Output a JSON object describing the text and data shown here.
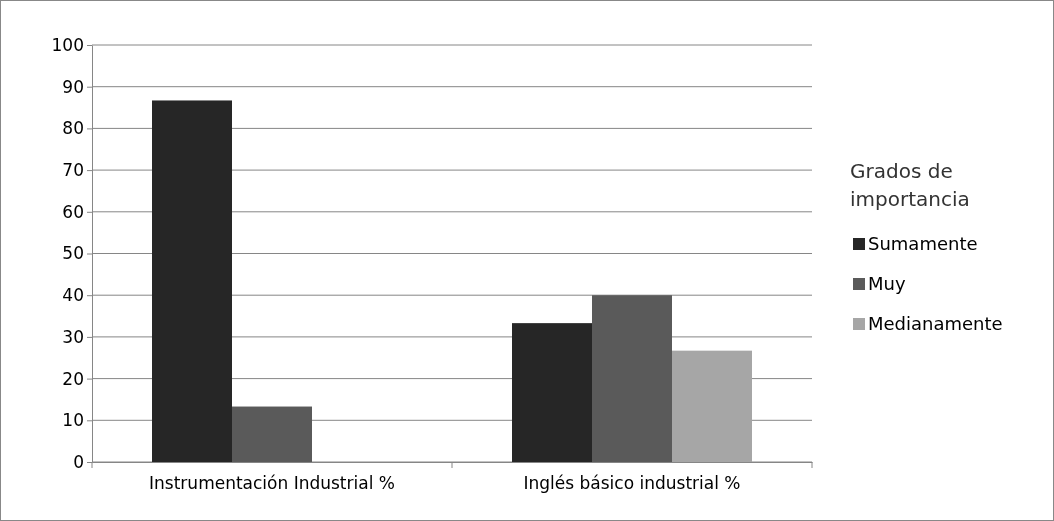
{
  "chart_data": {
    "type": "bar",
    "categories": [
      "Instrumentación Industrial %",
      "Inglés básico industrial %"
    ],
    "series": [
      {
        "name": "Sumamente",
        "color": "#262626",
        "values": [
          86.7,
          33.3
        ]
      },
      {
        "name": "Muy",
        "color": "#5a5a5a",
        "values": [
          13.3,
          40
        ]
      },
      {
        "name": "Medianamente",
        "color": "#a6a6a6",
        "values": [
          0,
          26.7
        ]
      }
    ],
    "legend_title": "Grados de importancia",
    "legend": "right",
    "ylim": [
      0,
      100
    ],
    "yticks": [
      0,
      10,
      20,
      30,
      40,
      50,
      60,
      70,
      80,
      90,
      100
    ],
    "grid": "y"
  }
}
